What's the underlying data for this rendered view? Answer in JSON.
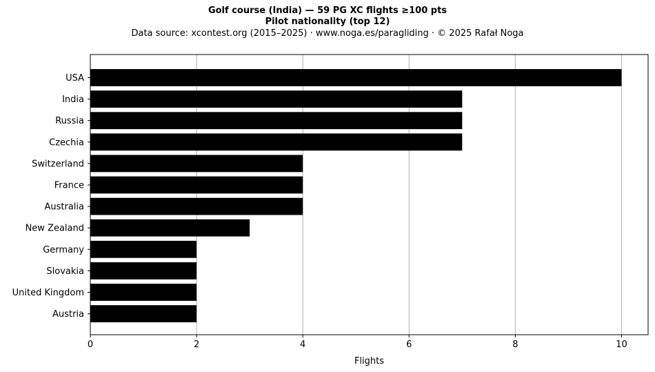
{
  "chart_data": {
    "type": "bar",
    "orientation": "horizontal",
    "title": "Golf course (India)  —  59 PG XC flights ≥100 pts",
    "subtitle": "Pilot nationality (top 12)",
    "source_line": "Data source: xcontest.org (2015–2025)  ·  www.noga.es/paragliding  ·  © 2025 Rafał Noga",
    "xlabel": "Flights",
    "ylabel": "",
    "xlim": [
      0,
      10.5
    ],
    "xticks": [
      0,
      2,
      4,
      6,
      8,
      10
    ],
    "grid": "vertical",
    "bar_color": "#000000",
    "categories": [
      "USA",
      "India",
      "Russia",
      "Czechia",
      "Switzerland",
      "France",
      "Australia",
      "New Zealand",
      "Germany",
      "Slovakia",
      "United Kingdom",
      "Austria"
    ],
    "values": [
      10,
      7,
      7,
      7,
      4,
      4,
      4,
      3,
      2,
      2,
      2,
      2
    ]
  }
}
